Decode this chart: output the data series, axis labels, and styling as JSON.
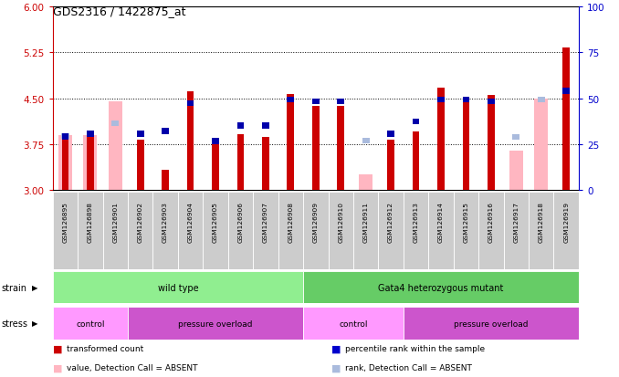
{
  "title": "GDS2316 / 1422875_at",
  "samples": [
    "GSM126895",
    "GSM126898",
    "GSM126901",
    "GSM126902",
    "GSM126903",
    "GSM126904",
    "GSM126905",
    "GSM126906",
    "GSM126907",
    "GSM126908",
    "GSM126909",
    "GSM126910",
    "GSM126911",
    "GSM126912",
    "GSM126913",
    "GSM126914",
    "GSM126915",
    "GSM126916",
    "GSM126917",
    "GSM126918",
    "GSM126919"
  ],
  "red_bars": [
    3.82,
    3.87,
    null,
    3.82,
    3.33,
    4.62,
    3.81,
    3.91,
    3.87,
    4.57,
    4.37,
    4.37,
    null,
    3.82,
    3.95,
    4.68,
    4.52,
    4.55,
    null,
    null,
    5.33
  ],
  "blue_tops": [
    3.82,
    3.87,
    null,
    3.87,
    3.91,
    4.37,
    3.75,
    4.0,
    4.0,
    4.43,
    4.4,
    4.4,
    null,
    3.87,
    4.07,
    4.43,
    4.43,
    4.4,
    null,
    null,
    4.57
  ],
  "pink_bars": [
    3.9,
    3.9,
    4.45,
    null,
    null,
    null,
    null,
    null,
    null,
    null,
    null,
    null,
    3.25,
    null,
    null,
    null,
    null,
    null,
    3.65,
    4.5,
    null
  ],
  "lightblue_tops": [
    3.84,
    3.84,
    4.05,
    null,
    null,
    null,
    null,
    null,
    null,
    null,
    null,
    null,
    3.77,
    null,
    null,
    null,
    null,
    null,
    3.82,
    4.43,
    null
  ],
  "ylim": [
    3.0,
    6.0
  ],
  "yticks_left": [
    3.0,
    3.75,
    4.5,
    5.25,
    6.0
  ],
  "yticks_right": [
    0,
    25,
    50,
    75,
    100
  ],
  "base": 3.0,
  "strain_groups": [
    {
      "label": "wild type",
      "start": 0,
      "end": 10,
      "color": "#90EE90"
    },
    {
      "label": "Gata4 heterozygous mutant",
      "start": 10,
      "end": 21,
      "color": "#66CC66"
    }
  ],
  "stress_groups": [
    {
      "label": "control",
      "start": 0,
      "end": 3,
      "color": "#FF99FF"
    },
    {
      "label": "pressure overload",
      "start": 3,
      "end": 10,
      "color": "#CC55CC"
    },
    {
      "label": "control",
      "start": 10,
      "end": 14,
      "color": "#FF99FF"
    },
    {
      "label": "pressure overload",
      "start": 14,
      "end": 21,
      "color": "#CC55CC"
    }
  ],
  "legend_labels": [
    "transformed count",
    "percentile rank within the sample",
    "value, Detection Call = ABSENT",
    "rank, Detection Call = ABSENT"
  ],
  "legend_colors": [
    "#CC0000",
    "#0000CC",
    "#FFB6C1",
    "#AABBDD"
  ],
  "left_axis_color": "#CC0000",
  "right_axis_color": "#0000CC"
}
